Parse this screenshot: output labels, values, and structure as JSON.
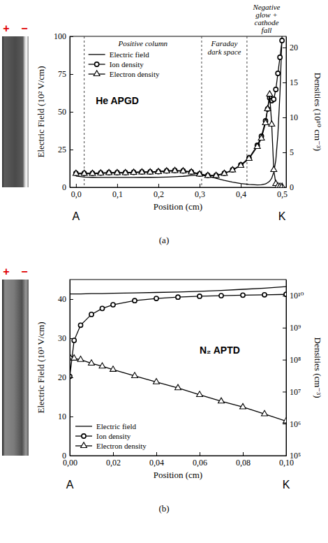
{
  "chart_data": [
    {
      "type": "line",
      "panel_label": "(a)",
      "title": "He APGD",
      "x_label": "Position (cm)",
      "y_label": "Electric Field (10² V/cm)",
      "y2_label": "Densities (10¹⁰ cm⁻³)",
      "polarity_labels": [
        "+",
        "−"
      ],
      "x_end_labels": [
        "A",
        "K"
      ],
      "regions": [
        {
          "label": "Positive column",
          "from": 0.02,
          "to": 0.305
        },
        {
          "label": "Faraday dark space",
          "from": 0.305,
          "to": 0.415
        },
        {
          "label": "Negative glow + cathode fall",
          "from": 0.415,
          "to": 0.51
        }
      ],
      "xlim": [
        -0.015,
        0.51
      ],
      "xticks": [
        {
          "value": 0,
          "label": "0,0"
        },
        {
          "value": 0.1,
          "label": "0,1"
        },
        {
          "value": 0.2,
          "label": "0,2"
        },
        {
          "value": 0.3,
          "label": "0,3"
        },
        {
          "value": 0.4,
          "label": "0,4"
        },
        {
          "value": 0.5,
          "label": "0,5"
        }
      ],
      "ylim": [
        0,
        100
      ],
      "yticks": [
        0,
        25,
        50,
        75,
        100
      ],
      "y2lim": [
        0,
        21.6
      ],
      "y2ticks": [
        0,
        5,
        10,
        15,
        20
      ],
      "legend": "upper left",
      "x": [
        0,
        0.02,
        0.04,
        0.06,
        0.08,
        0.1,
        0.12,
        0.14,
        0.16,
        0.18,
        0.2,
        0.22,
        0.24,
        0.26,
        0.28,
        0.3,
        0.32,
        0.34,
        0.36,
        0.38,
        0.4,
        0.42,
        0.44,
        0.45,
        0.46,
        0.465,
        0.47,
        0.475,
        0.48,
        0.485,
        0.49,
        0.495,
        0.5
      ],
      "series": [
        {
          "name": "Electric field",
          "color": "#000000",
          "line_style": "solid",
          "values": [
            7.5,
            6.8,
            6.6,
            6.5,
            6.5,
            6.5,
            6.5,
            6.5,
            6.6,
            6.6,
            6.7,
            6.8,
            7,
            7.3,
            7.8,
            8.2,
            7.4,
            6,
            4.6,
            3.4,
            2.5,
            1.9,
            1.6,
            1.7,
            2.3,
            3,
            4,
            6,
            10,
            18,
            35,
            62,
            100
          ]
        },
        {
          "name": "Ion density",
          "color": "#000000",
          "line_style": "solid",
          "marker": "circle",
          "axis": "y2",
          "values": [
            2.0,
            2.0,
            2.0,
            2.05,
            2.1,
            2.1,
            2.1,
            2.15,
            2.2,
            2.2,
            2.25,
            2.35,
            2.4,
            2.35,
            2.2,
            1.9,
            1.7,
            1.7,
            2.0,
            2.5,
            3.2,
            4.2,
            6.0,
            7.3,
            9.5,
            11.2,
            12.8,
            12.4,
            12.6,
            14,
            16.3,
            18.6,
            21
          ]
        },
        {
          "name": "Electron density",
          "color": "#000000",
          "line_style": "solid",
          "marker": "triangle",
          "axis": "y2",
          "values": [
            1.95,
            1.95,
            1.95,
            2.0,
            2.05,
            2.05,
            2.05,
            2.1,
            2.15,
            2.15,
            2.2,
            2.3,
            2.35,
            2.3,
            2.15,
            1.85,
            1.65,
            1.65,
            1.95,
            2.45,
            3.1,
            4.1,
            5.8,
            7.0,
            9.2,
            11.2,
            13.3,
            9,
            2.5,
            0.5,
            0.15,
            0.1,
            0.1
          ]
        }
      ]
    },
    {
      "type": "line",
      "panel_label": "(b)",
      "title": "N₂ APTD",
      "x_label": "Position (cm)",
      "y_label": "Electric Field (10³ V/cm)",
      "y2_label": "Densities (cm⁻³)",
      "polarity_labels": [
        "+",
        "−"
      ],
      "x_end_labels": [
        "A",
        "K"
      ],
      "log": "y2",
      "xlim": [
        0,
        0.1
      ],
      "xticks": [
        {
          "value": 0,
          "label": "0,00"
        },
        {
          "value": 0.02,
          "label": "0,02"
        },
        {
          "value": 0.04,
          "label": "0,04"
        },
        {
          "value": 0.06,
          "label": "0,06"
        },
        {
          "value": 0.08,
          "label": "0,08"
        },
        {
          "value": 0.1,
          "label": "0,10"
        }
      ],
      "ylim": [
        0,
        45
      ],
      "yticks": [
        0,
        10,
        20,
        30,
        40
      ],
      "y2lim": [
        100000,
        32000000000
      ],
      "y2ticks": [
        {
          "value": 100000,
          "label": "10⁵"
        },
        {
          "value": 1000000,
          "label": "10⁶"
        },
        {
          "value": 10000000,
          "label": "10⁷"
        },
        {
          "value": 100000000,
          "label": "10⁸"
        },
        {
          "value": 1000000000,
          "label": "10⁹"
        },
        {
          "value": 10000000000,
          "label": "10¹⁰"
        }
      ],
      "legend": "lower left",
      "x": [
        0,
        0.002,
        0.005,
        0.01,
        0.015,
        0.02,
        0.03,
        0.04,
        0.05,
        0.06,
        0.07,
        0.08,
        0.09,
        0.1
      ],
      "series": [
        {
          "name": "Electric field",
          "color": "#000000",
          "line_style": "solid",
          "values": [
            41.3,
            41.3,
            41.3,
            41.4,
            41.4,
            41.5,
            41.6,
            41.7,
            41.8,
            42,
            42.2,
            42.5,
            42.8,
            43.2
          ]
        },
        {
          "name": "Ion density",
          "color": "#000000",
          "line_style": "solid",
          "marker": "circle",
          "axis": "y2",
          "values": [
            30000000,
            400000000,
            1200000000,
            2600000000,
            4000000000,
            5200000000,
            7000000000,
            8200000000,
            9000000000,
            9600000000,
            10000000000,
            10400000000,
            10700000000,
            11000000000
          ]
        },
        {
          "name": "Electron density",
          "color": "#000000",
          "line_style": "solid",
          "marker": "triangle",
          "axis": "y2",
          "values": [
            120000000,
            110000000,
            100000000,
            77000000,
            62000000,
            49000000,
            31000000,
            20000000,
            13000000,
            8000000,
            5000000,
            3300000,
            2000000,
            1200000
          ]
        }
      ]
    }
  ]
}
